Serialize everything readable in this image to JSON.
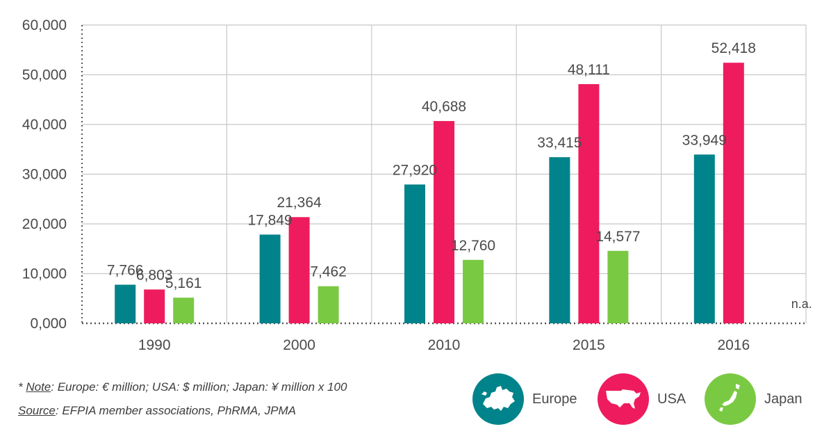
{
  "chart_data": {
    "type": "bar",
    "categories": [
      "1990",
      "2000",
      "2010",
      "2015",
      "2016"
    ],
    "series": [
      {
        "name": "Europe",
        "color": "#00838a",
        "values": [
          7766,
          17849,
          27920,
          33415,
          33949
        ],
        "labels": [
          "7,766",
          "17,849",
          "27,920",
          "33,415",
          "33,949"
        ]
      },
      {
        "name": "USA",
        "color": "#ee1c5e",
        "values": [
          6803,
          21364,
          40688,
          48111,
          52418
        ],
        "labels": [
          "6,803",
          "21,364",
          "40,688",
          "48,111",
          "52,418"
        ]
      },
      {
        "name": "Japan",
        "color": "#7ac943",
        "values": [
          5161,
          7462,
          12760,
          14577,
          null
        ],
        "labels": [
          "5,161",
          "7,462",
          "12,760",
          "14,577",
          "n.a."
        ]
      }
    ],
    "ylim": [
      0,
      60000
    ],
    "yticks": [
      0,
      10000,
      20000,
      30000,
      40000,
      50000,
      60000
    ],
    "ytick_labels": [
      "0,000",
      "10,000",
      "20,000",
      "30,000",
      "40,000",
      "50,000",
      "60,000"
    ],
    "grid": true,
    "legend_position": "bottom-right"
  },
  "notes": {
    "note_prefix": "* ",
    "note_label": "Note",
    "note_text": ": Europe: € million; USA: $ million; Japan: ¥ million x 100",
    "source_label": "Source",
    "source_text": ": EFPIA member associations, PhRMA, JPMA"
  },
  "legend": {
    "items": [
      {
        "name": "Europe",
        "icon": "europe-map-icon",
        "color": "#00838a"
      },
      {
        "name": "USA",
        "icon": "usa-map-icon",
        "color": "#ee1c5e"
      },
      {
        "name": "Japan",
        "icon": "japan-map-icon",
        "color": "#7ac943"
      }
    ]
  }
}
